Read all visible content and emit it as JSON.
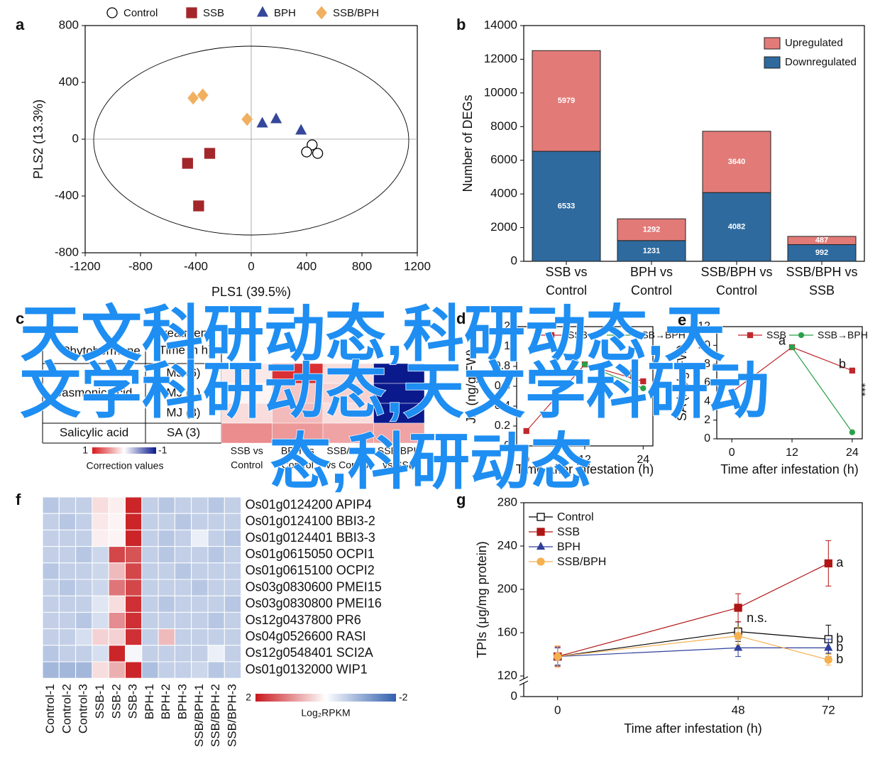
{
  "watermark": [
    "天文科研动态,科研动态,天",
    "文学科研动态,天文学科研动",
    "态,科研动态"
  ],
  "chart_data": [
    {
      "type": "scatter",
      "panel": "a",
      "xlabel": "PLS1 (39.5%)",
      "ylabel": "PLS2 (13.3%)",
      "xlim": [
        -1200,
        1200
      ],
      "ylim": [
        -800,
        800
      ],
      "xticks": [
        -1200,
        -800,
        -400,
        0,
        400,
        800,
        1200
      ],
      "yticks": [
        -800,
        -400,
        0,
        400,
        800
      ],
      "series": [
        {
          "name": "Control",
          "color": "#000000",
          "fill": "#ffffff",
          "marker": "circle",
          "x": [
            440,
            400,
            480
          ],
          "y": [
            -40,
            -90,
            -100
          ]
        },
        {
          "name": "SSB",
          "color": "#a3262b",
          "marker": "square",
          "x": [
            -300,
            -460,
            -380
          ],
          "y": [
            -100,
            -170,
            -470
          ]
        },
        {
          "name": "BPH",
          "color": "#34479a",
          "marker": "triangle",
          "x": [
            80,
            180,
            360
          ],
          "y": [
            110,
            140,
            60
          ]
        },
        {
          "name": "SSB/BPH",
          "color": "#f0b060",
          "marker": "diamond",
          "x": [
            -420,
            -350,
            -30
          ],
          "y": [
            290,
            310,
            140
          ]
        }
      ]
    },
    {
      "type": "stacked_bar",
      "panel": "b",
      "ylabel": "Number of DEGs",
      "categories": [
        [
          "SSB vs",
          "Control"
        ],
        [
          "BPH vs",
          "Control"
        ],
        [
          "SSB/BPH vs",
          "Control"
        ],
        [
          "SSB/BPH vs",
          "SSB"
        ]
      ],
      "ylim": [
        0,
        14000
      ],
      "yticks": [
        0,
        2000,
        4000,
        6000,
        8000,
        10000,
        12000,
        14000
      ],
      "legend": "upper right",
      "series": [
        {
          "name": "Downregulated",
          "color": "#2e6a9e",
          "values": [
            6533,
            1231,
            4082,
            992
          ]
        },
        {
          "name": "Upregulated",
          "color": "#e27b78",
          "values": [
            5979,
            1292,
            3640,
            487
          ]
        }
      ]
    },
    {
      "type": "heatmap_table",
      "panel": "c",
      "headers": [
        "Phytohormone",
        [
          "Treatment",
          "(Time in h)"
        ]
      ],
      "groups": [
        {
          "name": "Jasmonic acid",
          "rows": [
            "MJ (6)",
            "MJ (1)",
            "MJ (3)"
          ]
        },
        {
          "name": "Salicylic acid",
          "rows": [
            "SA (3)"
          ]
        }
      ],
      "columns": [
        [
          "SSB vs",
          "Control"
        ],
        [
          "BPH vs",
          "Control"
        ],
        [
          "SSB/BPH",
          "vs Control"
        ],
        [
          "SSB/BPH",
          "vs SSB"
        ]
      ],
      "values": [
        [
          0.1,
          0.9,
          0.15,
          -1
        ],
        [
          0.05,
          0.25,
          0.2,
          -1
        ],
        [
          0.15,
          0.3,
          0.15,
          -1
        ],
        [
          0.5,
          0.45,
          0.4,
          0.4
        ]
      ],
      "colorbar": {
        "max": 1,
        "min": -1,
        "label": "Correction values"
      }
    },
    {
      "type": "line",
      "panel": "d",
      "ylabel": "JA (ng/g FW)",
      "xlabel": "Time after infestation (h)",
      "x": [
        0,
        12,
        24
      ],
      "xlim": [
        -2,
        26
      ],
      "xticks": [
        0,
        12,
        24
      ],
      "ylim": [
        0,
        1.2
      ],
      "yticks": [
        0,
        0.2,
        0.4,
        0.6,
        0.8,
        1.0,
        1.2
      ],
      "series": [
        {
          "name": "SSB",
          "color": "#c0282d",
          "marker": "square",
          "values": [
            0.15,
            0.82,
            0.65
          ],
          "point_labels": [
            null,
            "a",
            "b"
          ]
        },
        {
          "name": "SSB→BPH",
          "color": "#2aa048",
          "marker": "circle",
          "values": [
            null,
            0.82,
            0.58
          ]
        }
      ]
    },
    {
      "type": "line",
      "panel": "e",
      "ylabel": "SA (ng/g FW)",
      "xlabel": "Time after infestation (h)",
      "x": [
        0,
        12,
        24
      ],
      "xlim": [
        -3,
        26
      ],
      "xticks": [
        0,
        12,
        24
      ],
      "ylim": [
        0,
        12
      ],
      "yticks": [
        0,
        2,
        4,
        6,
        8,
        10,
        12
      ],
      "series": [
        {
          "name": "SSB",
          "color": "#c0282d",
          "marker": "square",
          "values": [
            5,
            9.8,
            7.3
          ],
          "point_labels": [
            null,
            "a",
            "b"
          ]
        },
        {
          "name": "SSB→BPH",
          "color": "#2aa048",
          "marker": "circle",
          "values": [
            null,
            9.8,
            0.7
          ],
          "point_labels": [
            null,
            null,
            "***"
          ]
        }
      ]
    },
    {
      "type": "heatmap",
      "panel": "f",
      "rows": [
        "Os01g0124200 APIP4",
        "Os01g0124100 BBI3-2",
        "Os01g0124401 BBI3-3",
        "Os01g0615050 OCPI1",
        "Os01g0615100 OCPI2",
        "Os03g0830600 PMEI15",
        "Os03g0830800 PMEI16",
        "Os12g0437800 PR6",
        "Os04g0526600 RASI",
        "Os12g0548401 SCI2A",
        "Os01g0132000 WIP1"
      ],
      "columns": [
        "Control-1",
        "Control-2",
        "Control-3",
        "SSB-1",
        "SSB-2",
        "SSB-3",
        "BPH-1",
        "BPH-2",
        "BPH-3",
        "SSB/BPH-1",
        "SSB/BPH-2",
        "SSB/BPH-3"
      ],
      "values": [
        [
          -0.7,
          -0.6,
          -0.6,
          0.3,
          0.15,
          1.9,
          -0.6,
          -0.7,
          -0.6,
          -0.6,
          -0.7,
          -0.6
        ],
        [
          -0.6,
          -0.7,
          -0.6,
          0.2,
          0.1,
          1.9,
          -0.6,
          -0.6,
          -0.7,
          -0.6,
          -0.6,
          -0.6
        ],
        [
          -0.6,
          -0.6,
          -0.6,
          0.15,
          0.1,
          1.9,
          -0.6,
          -0.7,
          -0.6,
          -0.2,
          -0.6,
          -0.7
        ],
        [
          -0.6,
          -0.6,
          -0.7,
          -0.5,
          1.6,
          1.5,
          -0.6,
          -0.7,
          -0.6,
          -0.6,
          -0.7,
          -0.6
        ],
        [
          -0.7,
          -0.6,
          -0.6,
          -0.5,
          0.6,
          1.6,
          -0.6,
          -0.6,
          -0.7,
          -0.6,
          -0.6,
          -0.6
        ],
        [
          -0.6,
          -0.7,
          -0.6,
          -0.5,
          1.2,
          1.6,
          -0.6,
          -0.6,
          -0.6,
          -0.7,
          -0.6,
          -0.6
        ],
        [
          -0.6,
          -0.6,
          -0.6,
          -0.3,
          0.3,
          1.8,
          -0.6,
          -0.7,
          -0.6,
          -0.6,
          -0.6,
          -0.7
        ],
        [
          -0.6,
          -0.6,
          -0.7,
          -0.4,
          1.0,
          1.8,
          -0.6,
          -0.6,
          -0.6,
          -0.6,
          -0.7,
          -0.6
        ],
        [
          -0.6,
          -0.6,
          -0.4,
          0.4,
          0.4,
          1.8,
          -0.6,
          0.6,
          -0.6,
          -0.6,
          -0.6,
          -0.6
        ],
        [
          -0.7,
          -0.6,
          -0.6,
          -0.4,
          1.9,
          -0.1,
          -0.6,
          -0.6,
          -0.6,
          -0.6,
          -0.2,
          -0.6
        ],
        [
          -0.9,
          -0.9,
          -0.9,
          0.3,
          0.7,
          1.9,
          -0.8,
          -0.6,
          -0.6,
          -0.5,
          -0.7,
          -0.6
        ]
      ],
      "colorbar": {
        "max": 2,
        "min": -2,
        "label": "Log₂RPKM"
      }
    },
    {
      "type": "line",
      "panel": "g",
      "ylabel": "TPIs (μg/mg protein)",
      "xlabel": "Time after infestation (h)",
      "x": [
        0,
        48,
        72
      ],
      "xlim": [
        -9,
        81
      ],
      "xticks": [
        0,
        48,
        72
      ],
      "ylim": [
        101,
        280
      ],
      "yticks": [
        0,
        120,
        160,
        200,
        240,
        280
      ],
      "axis_break": true,
      "legend": "upper left",
      "series": [
        {
          "name": "Control",
          "color": "#000000",
          "fill": "#ffffff",
          "marker": "square",
          "values": [
            138,
            161,
            154
          ],
          "errors": [
            8,
            9,
            13
          ],
          "point_labels": [
            null,
            "n.s.",
            "b"
          ]
        },
        {
          "name": "SSB",
          "color": "#b01515",
          "marker": "square",
          "values": [
            138,
            183,
            224
          ],
          "errors": [
            9,
            13,
            21
          ],
          "point_labels": [
            null,
            null,
            "a"
          ]
        },
        {
          "name": "BPH",
          "color": "#2f3f9a",
          "marker": "triangle",
          "values": [
            138,
            146,
            146
          ],
          "errors": [
            8,
            8,
            8
          ],
          "point_labels": [
            null,
            null,
            "b"
          ]
        },
        {
          "name": "SSB/BPH",
          "color": "#f5b050",
          "marker": "circle",
          "values": [
            138,
            157,
            135
          ],
          "errors": [
            10,
            8,
            5
          ],
          "point_labels": [
            null,
            null,
            "b"
          ]
        }
      ]
    }
  ]
}
